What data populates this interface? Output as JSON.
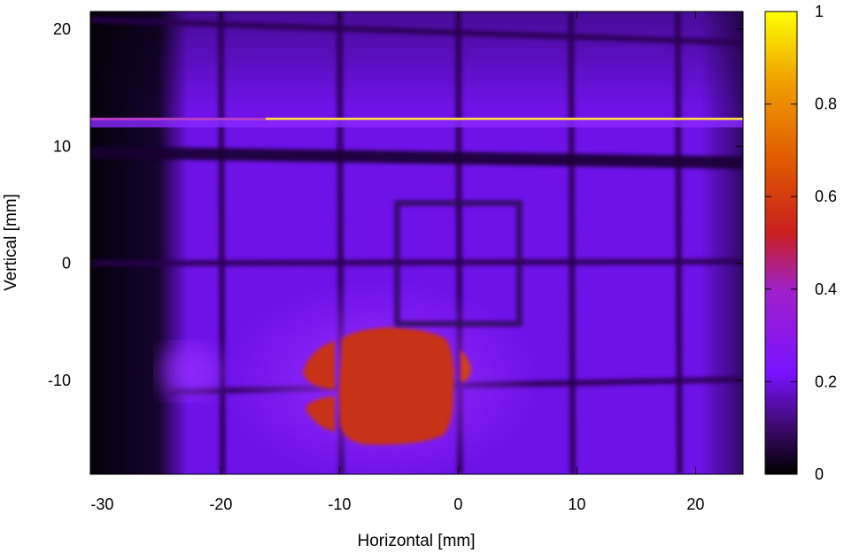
{
  "chart_data": {
    "type": "heatmap",
    "title": "",
    "xlabel": "Horizontal [mm]",
    "ylabel": "Vertical [mm]",
    "xlim": [
      -31,
      24
    ],
    "ylim": [
      -18,
      21.5
    ],
    "xticks": [
      -30,
      -20,
      -10,
      0,
      10,
      20
    ],
    "yticks": [
      -10,
      0,
      10,
      20
    ],
    "colorbar": {
      "range": [
        0,
        1
      ],
      "ticks": [
        0,
        0.2,
        0.4,
        0.6,
        0.8,
        1
      ],
      "tick_labels": [
        "0",
        "0.2",
        "0.4",
        "0.6",
        "0.8",
        "1"
      ],
      "colormap": [
        "#000000",
        "#3b0a6a",
        "#7a12ff",
        "#a020c8",
        "#c81f1f",
        "#e05a00",
        "#f0a000",
        "#ffff00"
      ]
    },
    "intensity": {
      "background": 0.22,
      "shadow_region_x": [
        -31,
        -24
      ],
      "shadow_value": 0.03,
      "hotspot": {
        "center": [
          -6.5,
          -10.5
        ],
        "half_width": [
          6.5,
          5.5
        ],
        "value": 0.55
      },
      "bright_line": {
        "y": 12.2,
        "x_range": [
          -16.5,
          24
        ],
        "value": 0.9
      },
      "grid_lines_x": [
        -20,
        -10,
        0,
        9.5,
        18.5
      ],
      "grid_lines_y": [
        20.5,
        9.5,
        0,
        -10.5
      ],
      "wire_value": 0.05,
      "square": {
        "x": [
          -5,
          5
        ],
        "y": [
          -5,
          5
        ]
      }
    }
  }
}
